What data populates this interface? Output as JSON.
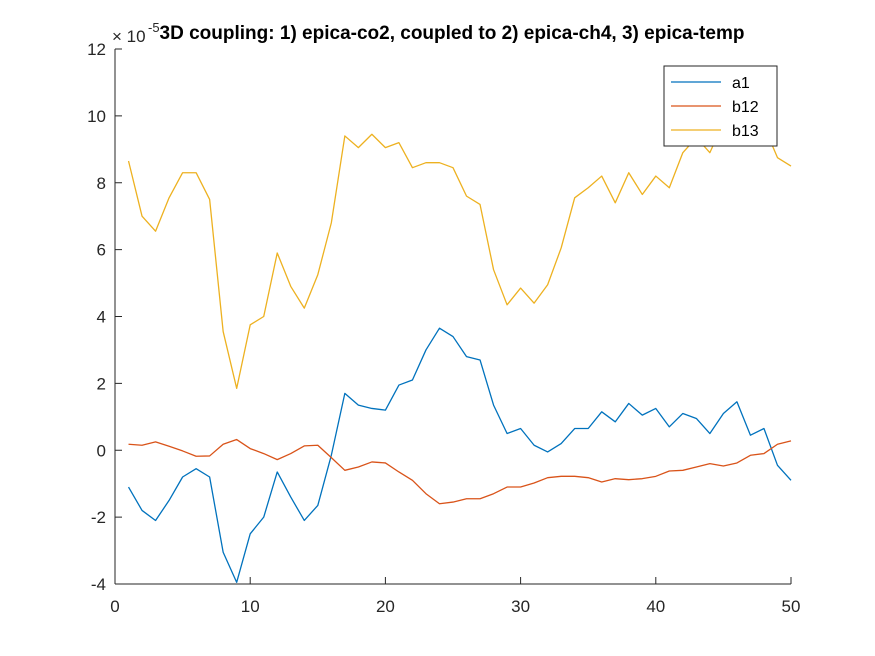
{
  "chart_data": {
    "type": "line",
    "title": "3D coupling: 1) epica-co2, coupled to 2) epica-ch4, 3) epica-temp",
    "xlabel": "",
    "ylabel": "",
    "y_exponent_label": "× 10",
    "y_exponent": "-5",
    "xlim": [
      0,
      50
    ],
    "ylim": [
      -4,
      12
    ],
    "xticks": [
      0,
      10,
      20,
      30,
      40,
      50
    ],
    "yticks": [
      -4,
      -2,
      0,
      2,
      4,
      6,
      8,
      10,
      12
    ],
    "grid": false,
    "legend_position": "top-right",
    "x": [
      1,
      2,
      3,
      4,
      5,
      6,
      7,
      8,
      9,
      10,
      11,
      12,
      13,
      14,
      15,
      16,
      17,
      18,
      19,
      20,
      21,
      22,
      23,
      24,
      25,
      26,
      27,
      28,
      29,
      30,
      31,
      32,
      33,
      34,
      35,
      36,
      37,
      38,
      39,
      40,
      41,
      42,
      43,
      44,
      45,
      46,
      47,
      48,
      49,
      50
    ],
    "series": [
      {
        "name": "a1",
        "color": "#0072BD",
        "values": [
          -1.1,
          -1.8,
          -2.1,
          -1.5,
          -0.8,
          -0.55,
          -0.8,
          -3.05,
          -3.95,
          -2.5,
          -2.0,
          -0.65,
          -1.4,
          -2.1,
          -1.65,
          -0.15,
          1.7,
          1.35,
          1.25,
          1.2,
          1.95,
          2.1,
          3.0,
          3.65,
          3.4,
          2.8,
          2.7,
          1.35,
          0.5,
          0.65,
          0.15,
          -0.05,
          0.2,
          0.65,
          0.65,
          1.15,
          0.85,
          1.4,
          1.05,
          1.25,
          0.7,
          1.1,
          0.95,
          0.5,
          1.1,
          1.45,
          0.45,
          0.65,
          -0.45,
          -0.9
        ]
      },
      {
        "name": "b12",
        "color": "#D95319",
        "values": [
          0.18,
          0.15,
          0.25,
          0.12,
          -0.02,
          -0.18,
          -0.17,
          0.18,
          0.32,
          0.05,
          -0.1,
          -0.28,
          -0.1,
          0.13,
          0.15,
          -0.22,
          -0.6,
          -0.5,
          -0.35,
          -0.38,
          -0.65,
          -0.9,
          -1.3,
          -1.6,
          -1.55,
          -1.45,
          -1.45,
          -1.3,
          -1.1,
          -1.1,
          -0.98,
          -0.82,
          -0.78,
          -0.78,
          -0.82,
          -0.95,
          -0.85,
          -0.88,
          -0.85,
          -0.78,
          -0.62,
          -0.6,
          -0.5,
          -0.4,
          -0.47,
          -0.38,
          -0.15,
          -0.1,
          0.18,
          0.28
        ]
      },
      {
        "name": "b13",
        "color": "#EDB120",
        "values": [
          8.65,
          7.0,
          6.55,
          7.55,
          8.3,
          8.3,
          7.5,
          3.55,
          1.85,
          3.75,
          4.0,
          5.9,
          4.9,
          4.25,
          5.25,
          6.8,
          9.4,
          9.05,
          9.45,
          9.05,
          9.2,
          8.45,
          8.6,
          8.6,
          8.45,
          7.6,
          7.35,
          5.4,
          4.35,
          4.85,
          4.4,
          4.95,
          6.05,
          7.55,
          7.85,
          8.2,
          7.4,
          8.3,
          7.65,
          8.2,
          7.85,
          8.9,
          9.35,
          8.9,
          9.8,
          9.9,
          10.55,
          9.7,
          8.75,
          8.5
        ]
      }
    ]
  }
}
